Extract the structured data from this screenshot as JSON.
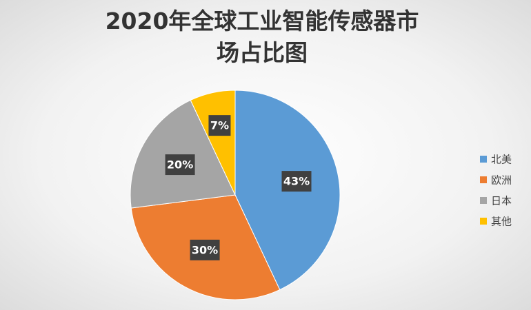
{
  "chart_data": {
    "type": "pie",
    "title": "2020年全球工业智能传感器市场占比图",
    "categories": [
      "北美",
      "欧洲",
      "日本",
      "其他"
    ],
    "values": [
      43,
      30,
      20,
      7
    ],
    "value_labels": [
      "43%",
      "30%",
      "20%",
      "7%"
    ],
    "colors": [
      "#5b9bd5",
      "#ed7d31",
      "#a5a5a5",
      "#ffc000"
    ],
    "legend": "right"
  }
}
